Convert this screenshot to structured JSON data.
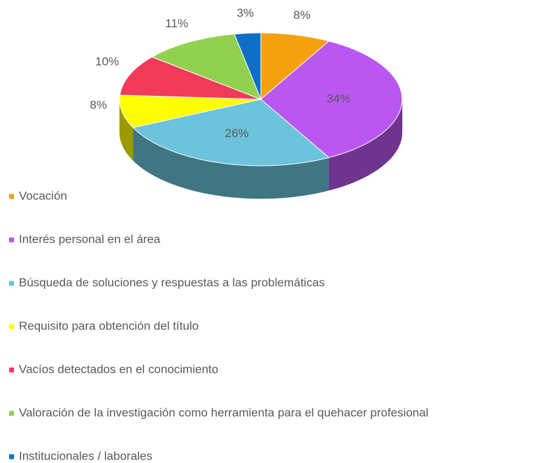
{
  "chart_data": {
    "type": "pie",
    "categories": [
      "Vocación",
      "Interés personal en el área",
      "Búsqueda de soluciones y respuestas a las problemáticas",
      "Requisito para obtención del título",
      "Vacíos detectados en el conocimiento",
      "Valoración de la investigación como herramienta para el quehacer profesional",
      "Institucionales / laborales"
    ],
    "values": [
      8,
      34,
      26,
      8,
      10,
      11,
      3
    ],
    "value_labels": [
      "8%",
      "34%",
      "26%",
      "8%",
      "10%",
      "11%",
      "3%"
    ],
    "colors": [
      "#f5a00f",
      "#b957f0",
      "#6bc3dc",
      "#ffff00",
      "#f23a5b",
      "#92d050",
      "#0f6fc6"
    ]
  }
}
